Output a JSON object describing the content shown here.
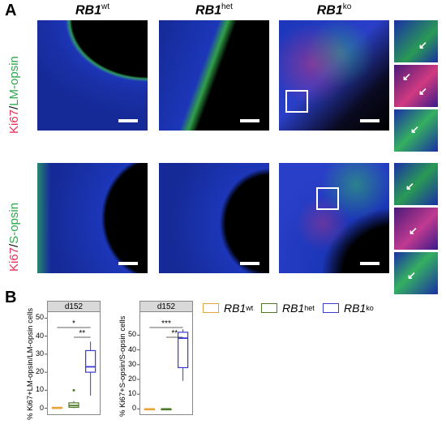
{
  "panel_a": {
    "letter": "A",
    "columns": [
      {
        "base": "RB1",
        "sup": "wt"
      },
      {
        "base": "RB1",
        "sup": "het"
      },
      {
        "base": "RB1",
        "sup": "ko"
      }
    ],
    "row_labels": [
      {
        "red": "Ki67",
        "slash": "/",
        "green": "LM-opsin"
      },
      {
        "red": "Ki67",
        "slash": "/",
        "green": "S-opsin"
      }
    ],
    "arrow_glyph": "↙"
  },
  "panel_b": {
    "letter": "B",
    "legend": [
      {
        "base": "RB1",
        "sup": "wt",
        "color": "#e8a33a"
      },
      {
        "base": "RB1",
        "sup": "het",
        "color": "#4d7a2a"
      },
      {
        "base": "RB1",
        "sup": "ko",
        "color": "#3b3bd6"
      }
    ]
  },
  "colors": {
    "red": "#e8305a",
    "green": "#2fa84f",
    "blue_tissue": "#1a2fb0"
  },
  "chart_data": [
    {
      "type": "box",
      "facet_label": "d152",
      "ylabel": "% Ki67+LM-opsin/LM-opsin cells",
      "yticks": [
        0,
        10,
        20,
        30,
        40,
        50
      ],
      "ylim": [
        -2,
        52
      ],
      "groups": [
        {
          "name": "RB1wt",
          "color": "#e8a33a",
          "min": 0,
          "q1": 0,
          "median": 0,
          "q3": 0.5,
          "max": 0.8,
          "outliers": []
        },
        {
          "name": "RB1het",
          "color": "#4d7a2a",
          "min": 0,
          "q1": 0.5,
          "median": 1.5,
          "q3": 3,
          "max": 4,
          "outliers": [
            10
          ]
        },
        {
          "name": "RB1ko",
          "color": "#3b3bd6",
          "min": 7,
          "q1": 20,
          "median": 23,
          "q3": 32,
          "max": 37,
          "outliers": []
        }
      ],
      "significance": [
        {
          "from": 0,
          "to": 2,
          "label": "*"
        },
        {
          "from": 1,
          "to": 2,
          "label": "**"
        }
      ]
    },
    {
      "type": "box",
      "facet_label": "d152",
      "ylabel": "% Ki67+S-opsin/S-opsin cells",
      "yticks": [
        0,
        10,
        20,
        30,
        40,
        50
      ],
      "ylim": [
        -2,
        64
      ],
      "groups": [
        {
          "name": "RB1wt",
          "color": "#e8a33a",
          "min": 0,
          "q1": 0,
          "median": 0,
          "q3": 0,
          "max": 0,
          "outliers": []
        },
        {
          "name": "RB1het",
          "color": "#4d7a2a",
          "min": 0,
          "q1": 0,
          "median": 0,
          "q3": 0,
          "max": 0,
          "outliers": []
        },
        {
          "name": "RB1ko",
          "color": "#3b3bd6",
          "min": 19,
          "q1": 28,
          "median": 48,
          "q3": 52,
          "max": 54,
          "outliers": []
        }
      ],
      "significance": [
        {
          "from": 0,
          "to": 2,
          "label": "***"
        },
        {
          "from": 1,
          "to": 2,
          "label": "**"
        }
      ]
    }
  ]
}
